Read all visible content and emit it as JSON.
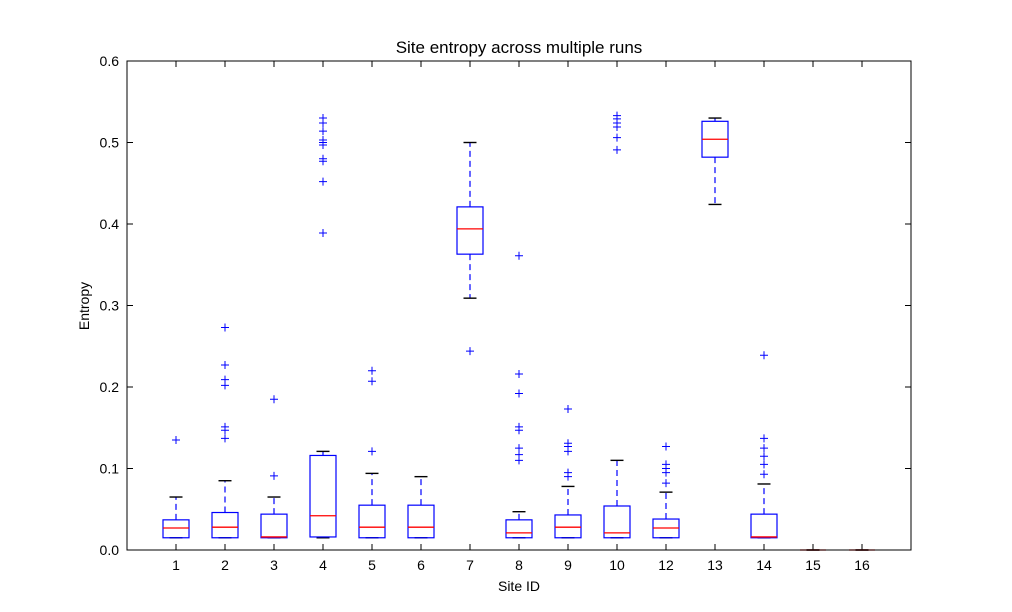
{
  "chart_data": {
    "type": "box",
    "title": "Site entropy across multiple runs",
    "xlabel": "Site ID",
    "ylabel": "Entropy",
    "ylim": [
      0,
      0.6
    ],
    "yticks": [
      "0.0",
      "0.1",
      "0.2",
      "0.3",
      "0.4",
      "0.5",
      "0.6"
    ],
    "grid": false,
    "colors": {
      "box": "#0000ff",
      "median": "#ff0000",
      "whisker_cap": "#000000"
    },
    "categories": [
      "1",
      "2",
      "3",
      "4",
      "5",
      "6",
      "7",
      "8",
      "9",
      "10",
      "12",
      "13",
      "14",
      "15",
      "16"
    ],
    "boxes": [
      {
        "q1": 0.015,
        "median": 0.027,
        "q3": 0.037,
        "whisker_low": 0.015,
        "whisker_high": 0.065,
        "outliers": [
          0.135
        ]
      },
      {
        "q1": 0.015,
        "median": 0.028,
        "q3": 0.046,
        "whisker_low": 0.015,
        "whisker_high": 0.085,
        "outliers": [
          0.273,
          0.227,
          0.209,
          0.202,
          0.151,
          0.147,
          0.137
        ]
      },
      {
        "q1": 0.015,
        "median": 0.016,
        "q3": 0.044,
        "whisker_low": 0.015,
        "whisker_high": 0.065,
        "outliers": [
          0.185,
          0.091
        ]
      },
      {
        "q1": 0.016,
        "median": 0.042,
        "q3": 0.116,
        "whisker_low": 0.015,
        "whisker_high": 0.121,
        "outliers": [
          0.53,
          0.524,
          0.514,
          0.503,
          0.5,
          0.497,
          0.48,
          0.477,
          0.452,
          0.389
        ]
      },
      {
        "q1": 0.015,
        "median": 0.028,
        "q3": 0.055,
        "whisker_low": 0.015,
        "whisker_high": 0.094,
        "outliers": [
          0.22,
          0.207,
          0.121
        ]
      },
      {
        "q1": 0.015,
        "median": 0.028,
        "q3": 0.055,
        "whisker_low": 0.015,
        "whisker_high": 0.09,
        "outliers": []
      },
      {
        "q1": 0.363,
        "median": 0.394,
        "q3": 0.421,
        "whisker_low": 0.309,
        "whisker_high": 0.5,
        "outliers": [
          0.244
        ]
      },
      {
        "q1": 0.015,
        "median": 0.021,
        "q3": 0.037,
        "whisker_low": 0.015,
        "whisker_high": 0.047,
        "outliers": [
          0.361,
          0.216,
          0.192,
          0.151,
          0.147,
          0.125,
          0.117,
          0.11
        ]
      },
      {
        "q1": 0.015,
        "median": 0.028,
        "q3": 0.043,
        "whisker_low": 0.015,
        "whisker_high": 0.078,
        "outliers": [
          0.173,
          0.131,
          0.127,
          0.121,
          0.095,
          0.09
        ]
      },
      {
        "q1": 0.015,
        "median": 0.021,
        "q3": 0.054,
        "whisker_low": 0.015,
        "whisker_high": 0.11,
        "outliers": [
          0.533,
          0.529,
          0.524,
          0.519,
          0.506,
          0.491
        ]
      },
      {
        "q1": 0.015,
        "median": 0.027,
        "q3": 0.038,
        "whisker_low": 0.015,
        "whisker_high": 0.071,
        "outliers": [
          0.127,
          0.105,
          0.1,
          0.095,
          0.082
        ]
      },
      {
        "q1": 0.482,
        "median": 0.504,
        "q3": 0.526,
        "whisker_low": 0.424,
        "whisker_high": 0.53,
        "outliers": []
      },
      {
        "q1": 0.015,
        "median": 0.016,
        "q3": 0.044,
        "whisker_low": 0.015,
        "whisker_high": 0.081,
        "outliers": [
          0.239,
          0.137,
          0.125,
          0.115,
          0.105,
          0.093
        ]
      },
      {
        "q1": 0.0,
        "median": 0.0,
        "q3": 0.0,
        "whisker_low": 0.0,
        "whisker_high": 0.0,
        "outliers": []
      },
      {
        "q1": 0.0,
        "median": 0.0,
        "q3": 0.0,
        "whisker_low": 0.0,
        "whisker_high": 0.0,
        "outliers": []
      }
    ]
  }
}
